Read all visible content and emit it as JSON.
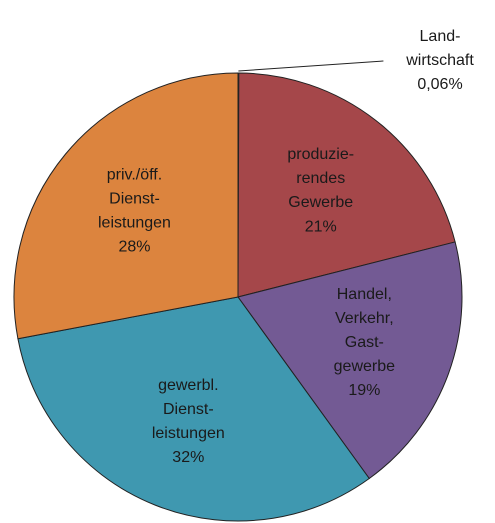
{
  "chart_data": {
    "type": "pie",
    "categories": [
      "Land-\nwirtschaft",
      "produzie-\nrendes\nGewerbe",
      "Handel,\nVerkehr,\nGast-\ngewerbe",
      "gewerbl.\nDienst-\nleistungen",
      "priv./öff.\nDienst-\nleistungen"
    ],
    "values": [
      0.06,
      21,
      19,
      32,
      28
    ],
    "value_labels": [
      "0,06%",
      "21%",
      "19%",
      "32%",
      "28%"
    ],
    "colors": [
      "#9bbb59",
      "#a5474a",
      "#735a94",
      "#3f98b0",
      "#dc843e"
    ]
  }
}
